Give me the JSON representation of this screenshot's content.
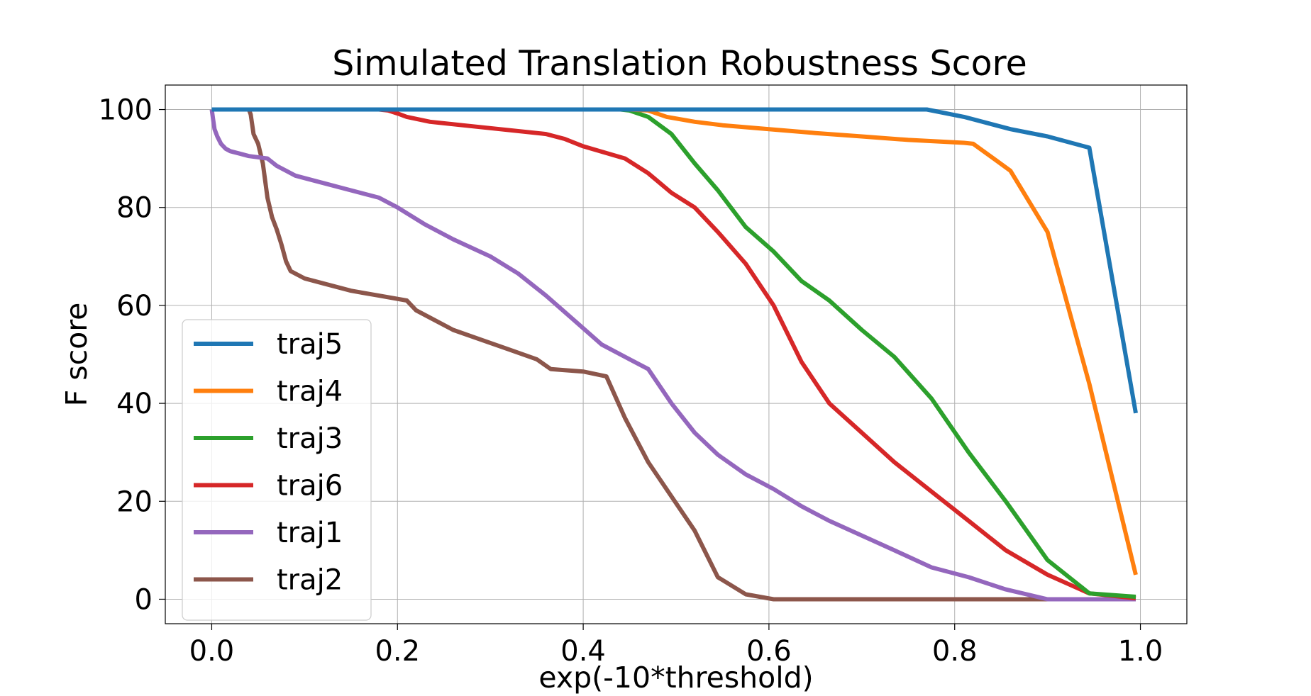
{
  "chart_data": {
    "type": "line",
    "title": "Simulated Translation Robustness Score",
    "xlabel": "exp(-10*threshold)",
    "ylabel": "F score",
    "xlim": [
      -0.05,
      1.05
    ],
    "ylim": [
      -5,
      105
    ],
    "xticks": [
      "0.0",
      "0.2",
      "0.4",
      "0.6",
      "0.8",
      "1.0"
    ],
    "yticks": [
      "0",
      "20",
      "40",
      "60",
      "80",
      "100"
    ],
    "grid": true,
    "legend_position": "lower-left",
    "series": [
      {
        "name": "traj5",
        "color": "#1f77b4",
        "x": [
          0,
          0.77,
          0.81,
          0.86,
          0.9,
          0.945,
          0.995
        ],
        "y": [
          100,
          100,
          98.5,
          96,
          94.5,
          92.2,
          38
        ]
      },
      {
        "name": "traj4",
        "color": "#ff7f0e",
        "x": [
          0,
          0.45,
          0.47,
          0.49,
          0.52,
          0.55,
          0.6,
          0.65,
          0.7,
          0.75,
          0.81,
          0.82,
          0.86,
          0.9,
          0.945,
          0.995
        ],
        "y": [
          100,
          100,
          99.8,
          98.5,
          97.5,
          96.8,
          96,
          95.2,
          94.5,
          93.8,
          93.2,
          93,
          87.5,
          75,
          44,
          5
        ]
      },
      {
        "name": "traj3",
        "color": "#2ca02c",
        "x": [
          0,
          0.44,
          0.45,
          0.47,
          0.495,
          0.52,
          0.545,
          0.575,
          0.605,
          0.635,
          0.665,
          0.7,
          0.735,
          0.775,
          0.815,
          0.855,
          0.9,
          0.945,
          0.995
        ],
        "y": [
          100,
          100,
          99.8,
          98.5,
          95,
          89,
          83.5,
          76,
          71,
          65,
          61,
          55,
          49.5,
          41,
          30,
          20,
          8,
          1.2,
          0.5
        ]
      },
      {
        "name": "traj6",
        "color": "#d62728",
        "x": [
          0,
          0.18,
          0.19,
          0.2,
          0.21,
          0.235,
          0.27,
          0.31,
          0.36,
          0.38,
          0.4,
          0.445,
          0.47,
          0.495,
          0.52,
          0.545,
          0.575,
          0.605,
          0.635,
          0.665,
          0.7,
          0.735,
          0.775,
          0.815,
          0.855,
          0.9,
          0.945,
          0.995
        ],
        "y": [
          100,
          100,
          99.8,
          99.2,
          98.5,
          97.5,
          96.8,
          96,
          95,
          94,
          92.5,
          90,
          87,
          83,
          80,
          75,
          68.5,
          60,
          48.5,
          40,
          34,
          28,
          22,
          16,
          10,
          5,
          1.2,
          0.2
        ]
      },
      {
        "name": "traj1",
        "color": "#9467bd",
        "x": [
          0,
          0.0015,
          0.003,
          0.006,
          0.01,
          0.015,
          0.02,
          0.03,
          0.04,
          0.06,
          0.07,
          0.08,
          0.09,
          0.1,
          0.12,
          0.14,
          0.16,
          0.18,
          0.2,
          0.23,
          0.26,
          0.3,
          0.33,
          0.36,
          0.39,
          0.42,
          0.445,
          0.47,
          0.495,
          0.52,
          0.545,
          0.575,
          0.605,
          0.635,
          0.665,
          0.7,
          0.735,
          0.775,
          0.815,
          0.855,
          0.9,
          0.995
        ],
        "y": [
          100,
          98,
          96,
          94.5,
          93,
          92,
          91.5,
          91,
          90.5,
          90,
          88.5,
          87.5,
          86.5,
          86,
          85,
          84,
          83,
          82,
          80,
          76.5,
          73.5,
          70,
          66.5,
          62,
          57,
          52,
          49.5,
          47,
          40,
          34,
          29.5,
          25.5,
          22.5,
          19,
          16,
          13,
          10,
          6.5,
          4.5,
          2,
          0,
          0
        ]
      },
      {
        "name": "traj2",
        "color": "#8c564b",
        "x": [
          0,
          0.04,
          0.042,
          0.045,
          0.05,
          0.055,
          0.06,
          0.065,
          0.07,
          0.075,
          0.08,
          0.085,
          0.09,
          0.1,
          0.12,
          0.15,
          0.18,
          0.21,
          0.22,
          0.235,
          0.26,
          0.29,
          0.32,
          0.35,
          0.365,
          0.4,
          0.425,
          0.445,
          0.47,
          0.495,
          0.52,
          0.545,
          0.575,
          0.605,
          0.995
        ],
        "y": [
          100,
          100,
          99,
          95,
          93,
          89,
          82,
          78,
          75.5,
          72.5,
          69,
          67,
          66.5,
          65.5,
          64.5,
          63,
          62,
          61,
          59,
          57.5,
          55,
          53,
          51,
          49,
          47,
          46.5,
          45.5,
          37,
          28,
          21,
          14,
          4.5,
          1,
          0,
          0
        ]
      }
    ]
  }
}
